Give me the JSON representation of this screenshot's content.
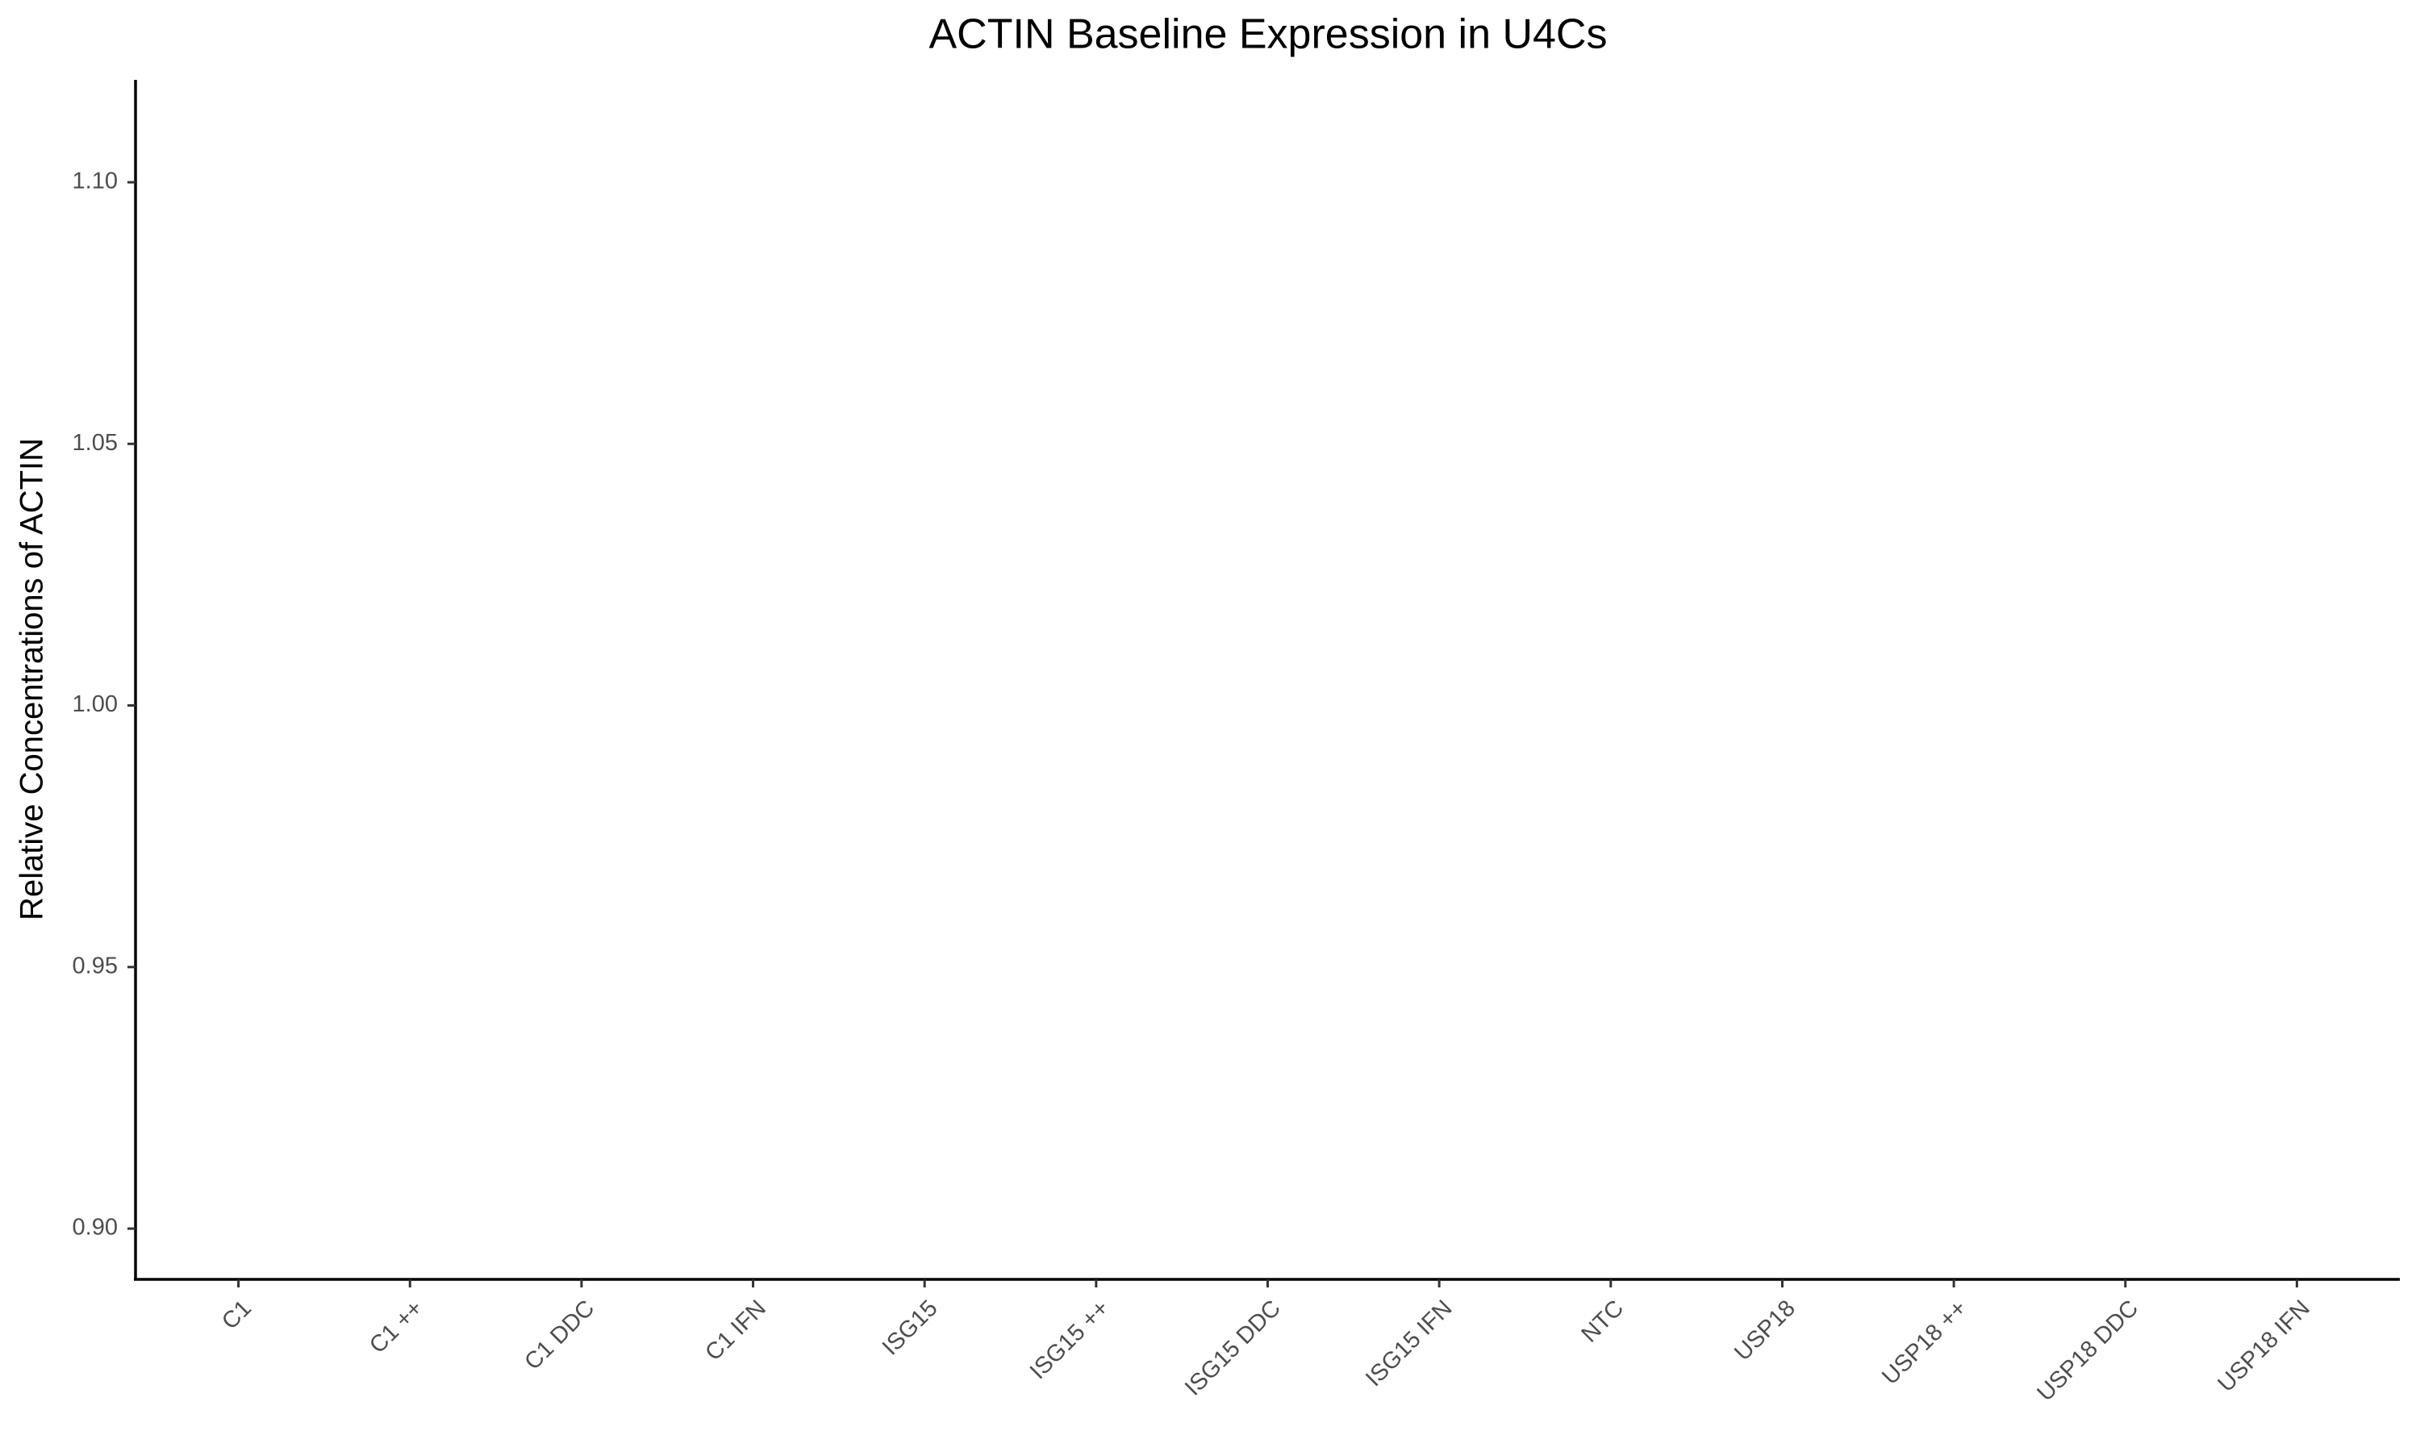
{
  "chart_data": {
    "type": "bar",
    "title": "ACTIN Baseline Expression in U4Cs",
    "y_label": "Relative Concentrations of ACTIN",
    "categories": [
      "C1",
      "C1 ++",
      "C1 DDC",
      "C1 IFN",
      "ISG15",
      "ISG15 ++",
      "ISG15 DDC",
      "ISG15 IFN",
      "NTC",
      "USP18",
      "USP18 ++",
      "USP18 DDC",
      "USP18 IFN"
    ],
    "ylim": [
      0.8903,
      1.1195
    ],
    "yticks": [
      {
        "value": 0.9,
        "label": "0.90"
      },
      {
        "value": 0.95,
        "label": "0.95"
      },
      {
        "value": 1.0,
        "label": "1.00"
      },
      {
        "value": 1.05,
        "label": "1.05"
      },
      {
        "value": 1.1,
        "label": "1.10"
      }
    ],
    "grid": false
  }
}
